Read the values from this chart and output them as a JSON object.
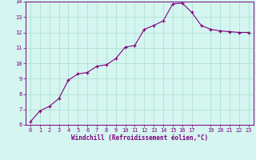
{
  "x": [
    0,
    1,
    2,
    3,
    4,
    5,
    6,
    7,
    8,
    9,
    10,
    11,
    12,
    13,
    14,
    15,
    16,
    17,
    18,
    19,
    20,
    21,
    22,
    23
  ],
  "y": [
    6.2,
    6.9,
    7.2,
    7.7,
    8.9,
    9.3,
    9.4,
    9.8,
    9.9,
    10.3,
    11.05,
    11.15,
    12.2,
    12.45,
    12.75,
    13.85,
    13.9,
    13.3,
    12.45,
    12.2,
    12.1,
    12.05,
    12.0,
    12.0
  ],
  "line_color": "#800080",
  "marker": "+",
  "marker_color": "#800080",
  "bg_color": "#d4f5f0",
  "grid_color": "#aaddcc",
  "xlabel": "Windchill (Refroidissement éolien,°C)",
  "xlabel_color": "#800080",
  "tick_color": "#800080",
  "spine_color": "#800080",
  "ylim": [
    6,
    14
  ],
  "yticks": [
    6,
    7,
    8,
    9,
    10,
    11,
    12,
    13,
    14
  ],
  "xlim": [
    -0.5,
    23.5
  ],
  "xticks": [
    0,
    1,
    2,
    3,
    4,
    5,
    6,
    7,
    8,
    9,
    10,
    11,
    12,
    13,
    14,
    15,
    16,
    17,
    19,
    20,
    21,
    22,
    23
  ],
  "xtick_labels": [
    "0",
    "1",
    "2",
    "3",
    "4",
    "5",
    "6",
    "7",
    "8",
    "9",
    "10",
    "11",
    "12",
    "13",
    "14",
    "15",
    "16",
    "17",
    "19",
    "20",
    "21",
    "22",
    "23"
  ],
  "tick_fontsize": 5.0,
  "xlabel_fontsize": 5.5,
  "ylabel_fontsize": 5.5,
  "linewidth": 0.8,
  "markersize": 3.5,
  "markeredgewidth": 0.9
}
